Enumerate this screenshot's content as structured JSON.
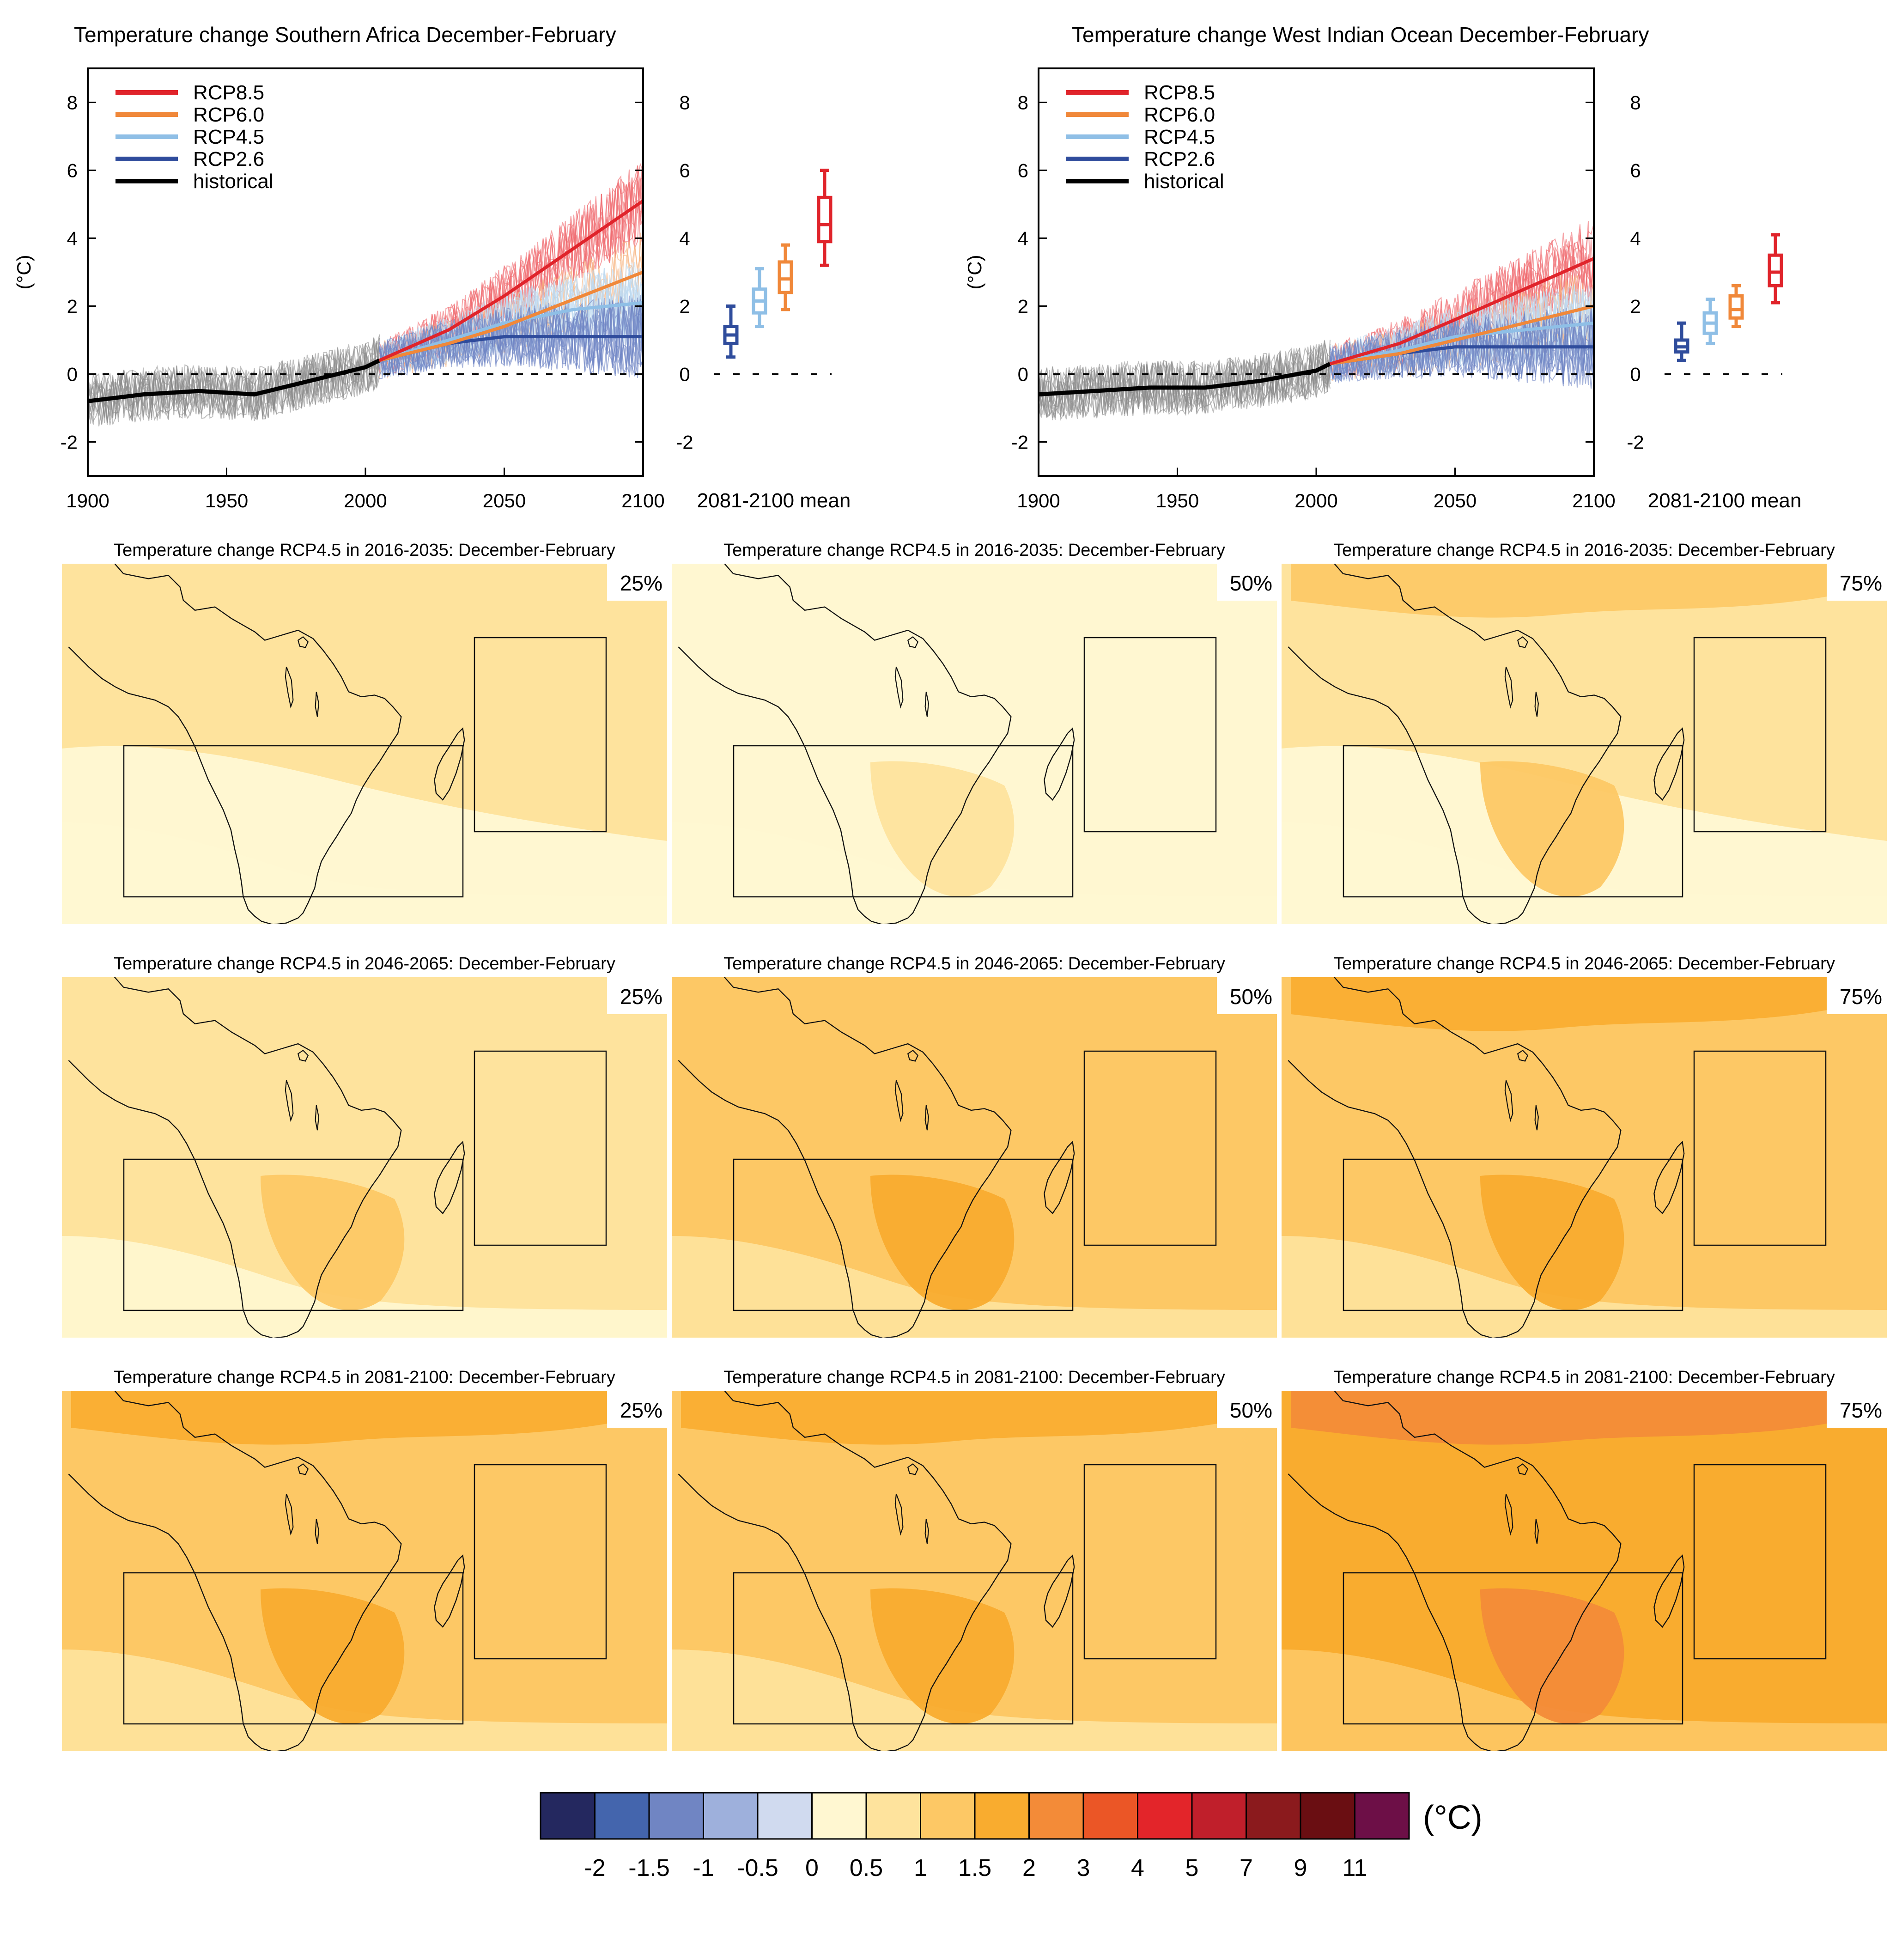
{
  "timeseries": [
    {
      "title": "Temperature change Southern Africa December-February",
      "ylabel": "(°C)",
      "box_axis_label": "2081-2100 mean"
    },
    {
      "title": "Temperature change West Indian Ocean December-February",
      "ylabel": "(°C)",
      "box_axis_label": "2081-2100 mean"
    }
  ],
  "legend": [
    {
      "name": "RCP8.5",
      "color": "#e0242b"
    },
    {
      "name": "RCP6.0",
      "color": "#f0883a"
    },
    {
      "name": "RCP4.5",
      "color": "#8fbfe6"
    },
    {
      "name": "RCP2.6",
      "color": "#2f4c9c"
    },
    {
      "name": "historical",
      "color": "#000000"
    }
  ],
  "maps": {
    "rows": [
      {
        "title": "Temperature change RCP4.5 in 2016-2035: December-February"
      },
      {
        "title": "Temperature change RCP4.5 in 2046-2065: December-February"
      },
      {
        "title": "Temperature change RCP4.5 in 2081-2100: December-February"
      }
    ],
    "percentiles": [
      "25%",
      "50%",
      "75%"
    ],
    "level_index_hint": "base colour class per panel (index into colorbar.colors)",
    "levels": [
      [
        6,
        5,
        6
      ],
      [
        6,
        7,
        7
      ],
      [
        7,
        7,
        8
      ]
    ]
  },
  "colorbar": {
    "unit": "(°C)",
    "colors": [
      "#24285f",
      "#4465ad",
      "#7085c3",
      "#9eb0dc",
      "#d0daef",
      "#fff7d1",
      "#fee39d",
      "#fdc865",
      "#f9ac2f",
      "#f38b38",
      "#eb5626",
      "#e3252a",
      "#c01f2b",
      "#8b1a1d",
      "#6a0e12",
      "#6d0f47"
    ],
    "ticks": [
      "-2",
      "-1.5",
      "-1",
      "-0.5",
      "0",
      "0.5",
      "1",
      "1.5",
      "2",
      "3",
      "4",
      "5",
      "7",
      "9",
      "11"
    ]
  },
  "chart_data": [
    {
      "type": "line",
      "title": "Temperature change Southern Africa December-February",
      "xlabel": "",
      "ylabel": "(°C)",
      "xlim": [
        1900,
        2100
      ],
      "ylim": [
        -3,
        9
      ],
      "x_ticks": [
        1900,
        1950,
        2000,
        2050,
        2100
      ],
      "y_ticks": [
        -2,
        0,
        2,
        4,
        6,
        8
      ],
      "legend_position": "top-left",
      "series": [
        {
          "name": "historical",
          "x": [
            1900,
            1920,
            1940,
            1960,
            1980,
            2000,
            2005
          ],
          "y": [
            -0.8,
            -0.6,
            -0.5,
            -0.6,
            -0.2,
            0.2,
            0.4
          ]
        },
        {
          "name": "RCP2.6",
          "x": [
            2005,
            2030,
            2050,
            2075,
            2100
          ],
          "y": [
            0.4,
            0.9,
            1.1,
            1.1,
            1.1
          ]
        },
        {
          "name": "RCP4.5",
          "x": [
            2005,
            2030,
            2050,
            2075,
            2100
          ],
          "y": [
            0.4,
            1.0,
            1.5,
            1.9,
            2.1
          ]
        },
        {
          "name": "RCP6.0",
          "x": [
            2005,
            2030,
            2050,
            2075,
            2100
          ],
          "y": [
            0.4,
            0.9,
            1.4,
            2.2,
            3.0
          ]
        },
        {
          "name": "RCP8.5",
          "x": [
            2005,
            2030,
            2050,
            2075,
            2100
          ],
          "y": [
            0.4,
            1.3,
            2.3,
            3.7,
            5.1
          ]
        }
      ],
      "box_2081_2100": [
        {
          "name": "RCP2.6",
          "min": 0.5,
          "q1": 0.9,
          "median": 1.15,
          "q3": 1.4,
          "max": 2.0
        },
        {
          "name": "RCP4.5",
          "min": 1.4,
          "q1": 1.8,
          "median": 2.15,
          "q3": 2.5,
          "max": 3.1
        },
        {
          "name": "RCP6.0",
          "min": 1.9,
          "q1": 2.4,
          "median": 2.8,
          "q3": 3.3,
          "max": 3.8
        },
        {
          "name": "RCP8.5",
          "min": 3.2,
          "q1": 3.9,
          "median": 4.4,
          "q3": 5.2,
          "max": 6.0
        }
      ]
    },
    {
      "type": "line",
      "title": "Temperature change West Indian Ocean December-February",
      "xlabel": "",
      "ylabel": "(°C)",
      "xlim": [
        1900,
        2100
      ],
      "ylim": [
        -3,
        9
      ],
      "x_ticks": [
        1900,
        1950,
        2000,
        2050,
        2100
      ],
      "y_ticks": [
        -2,
        0,
        2,
        4,
        6,
        8
      ],
      "legend_position": "top-left",
      "series": [
        {
          "name": "historical",
          "x": [
            1900,
            1920,
            1940,
            1960,
            1980,
            2000,
            2005
          ],
          "y": [
            -0.6,
            -0.5,
            -0.4,
            -0.4,
            -0.2,
            0.1,
            0.3
          ]
        },
        {
          "name": "RCP2.6",
          "x": [
            2005,
            2030,
            2050,
            2075,
            2100
          ],
          "y": [
            0.3,
            0.6,
            0.8,
            0.8,
            0.8
          ]
        },
        {
          "name": "RCP4.5",
          "x": [
            2005,
            2030,
            2050,
            2075,
            2100
          ],
          "y": [
            0.3,
            0.7,
            1.1,
            1.3,
            1.5
          ]
        },
        {
          "name": "RCP6.0",
          "x": [
            2005,
            2030,
            2050,
            2075,
            2100
          ],
          "y": [
            0.3,
            0.6,
            1.0,
            1.5,
            2.0
          ]
        },
        {
          "name": "RCP8.5",
          "x": [
            2005,
            2030,
            2050,
            2075,
            2100
          ],
          "y": [
            0.3,
            0.9,
            1.6,
            2.5,
            3.4
          ]
        }
      ],
      "box_2081_2100": [
        {
          "name": "RCP2.6",
          "min": 0.4,
          "q1": 0.65,
          "median": 0.8,
          "q3": 1.0,
          "max": 1.5
        },
        {
          "name": "RCP4.5",
          "min": 0.9,
          "q1": 1.2,
          "median": 1.5,
          "q3": 1.8,
          "max": 2.2
        },
        {
          "name": "RCP6.0",
          "min": 1.4,
          "q1": 1.65,
          "median": 1.9,
          "q3": 2.3,
          "max": 2.6
        },
        {
          "name": "RCP8.5",
          "min": 2.1,
          "q1": 2.6,
          "median": 3.0,
          "q3": 3.5,
          "max": 4.1
        }
      ]
    }
  ]
}
